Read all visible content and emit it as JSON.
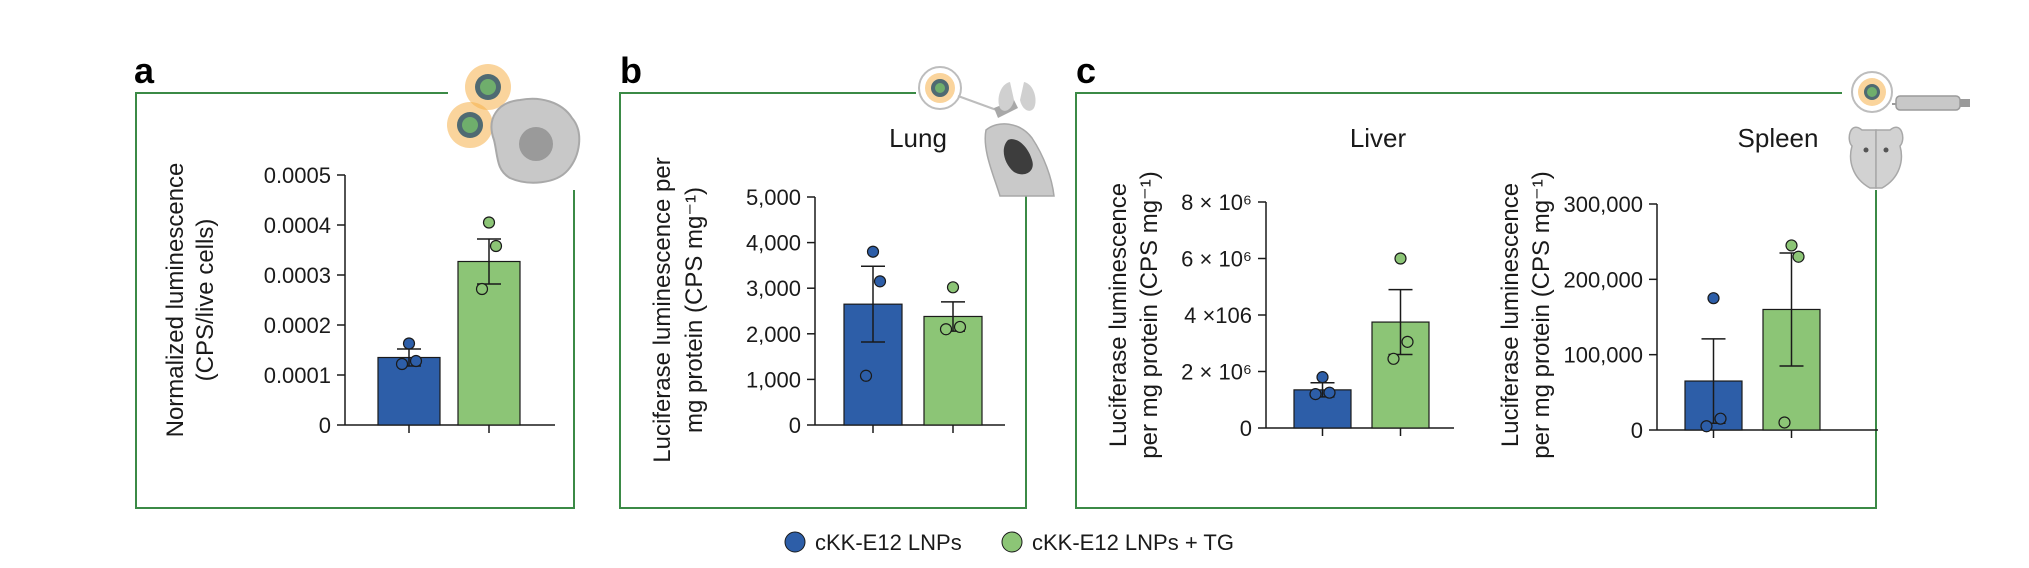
{
  "colors": {
    "series_a": "#2d5ea8",
    "series_b": "#8cc576",
    "frame": "#3b8a46",
    "axis": "#1a1a1a"
  },
  "legend": {
    "items": [
      {
        "label": "cKK-E12 LNPs",
        "color": "#2d5ea8"
      },
      {
        "label": "cKK-E12 LNPs + TG",
        "color": "#8cc576"
      }
    ]
  },
  "panels": [
    {
      "letter": "a",
      "icon": "nanoparticle-cell-icon"
    },
    {
      "letter": "b",
      "icon": "nanoparticle-lung-icon"
    },
    {
      "letter": "c",
      "icon": "nanoparticle-mouse-icon"
    }
  ],
  "chart_data": [
    {
      "type": "bar",
      "panel": "a",
      "title": "",
      "ylabel": [
        "Normalized luminescence",
        "(CPS/live cells)"
      ],
      "xlabel": "",
      "ylim": [
        0,
        0.0005
      ],
      "yticks": [
        0,
        0.0001,
        0.0002,
        0.0003,
        0.0004,
        0.0005
      ],
      "ytick_labels": [
        "0",
        "0.0001",
        "0.0002",
        "0.0003",
        "0.0004",
        "0.0005"
      ],
      "series": [
        {
          "name": "cKK-E12 LNPs",
          "mean": 0.000135,
          "sem": 1.7e-05,
          "points": [
            0.000122,
            0.000128,
            0.000163
          ]
        },
        {
          "name": "cKK-E12 LNPs + TG",
          "mean": 0.000327,
          "sem": 4.5e-05,
          "points": [
            0.000272,
            0.000358,
            0.000405
          ]
        }
      ]
    },
    {
      "type": "bar",
      "panel": "b",
      "title": "Lung",
      "ylabel": [
        "Luciferase luminescence per",
        "mg protein (CPS mg⁻¹)"
      ],
      "xlabel": "",
      "ylim": [
        0,
        5000
      ],
      "yticks": [
        0,
        1000,
        2000,
        3000,
        4000,
        5000
      ],
      "ytick_labels": [
        "0",
        "1,000",
        "2,000",
        "3,000",
        "4,000",
        "5,000"
      ],
      "series": [
        {
          "name": "cKK-E12 LNPs",
          "mean": 2650,
          "sem": 830,
          "points": [
            1080,
            3150,
            3800
          ]
        },
        {
          "name": "cKK-E12 LNPs + TG",
          "mean": 2380,
          "sem": 320,
          "points": [
            2100,
            2150,
            3020
          ]
        }
      ]
    },
    {
      "type": "bar",
      "panel": "c",
      "title": "Liver",
      "ylabel": [
        "Luciferase luminescence",
        "per mg protein (CPS mg⁻¹)"
      ],
      "xlabel": "",
      "ylim": [
        0,
        8000000
      ],
      "yticks": [
        0,
        2000000,
        4000000,
        6000000,
        8000000
      ],
      "ytick_labels": [
        "0",
        "2 × 10⁶",
        "4 ×106",
        "6 × 10⁶",
        "8 × 10⁶"
      ],
      "series": [
        {
          "name": "cKK-E12 LNPs",
          "mean": 1350000,
          "sem": 250000,
          "points": [
            1200000,
            1250000,
            1800000
          ]
        },
        {
          "name": "cKK-E12 LNPs + TG",
          "mean": 3750000,
          "sem": 1150000,
          "points": [
            2450000,
            3050000,
            6000000
          ]
        }
      ]
    },
    {
      "type": "bar",
      "panel": "c",
      "title": "Spleen",
      "ylabel": [
        "Luciferase luminescence",
        "per mg protein (CPS mg⁻¹)"
      ],
      "xlabel": "",
      "ylim": [
        0,
        300000
      ],
      "yticks": [
        0,
        100000,
        200000,
        300000
      ],
      "ytick_labels": [
        "0",
        "100,000",
        "200,000",
        "300,000"
      ],
      "series": [
        {
          "name": "cKK-E12 LNPs",
          "mean": 65000,
          "sem": 56000,
          "points": [
            5000,
            15000,
            175000
          ]
        },
        {
          "name": "cKK-E12 LNPs + TG",
          "mean": 160000,
          "sem": 75000,
          "points": [
            10000,
            230000,
            245000
          ]
        }
      ]
    }
  ]
}
